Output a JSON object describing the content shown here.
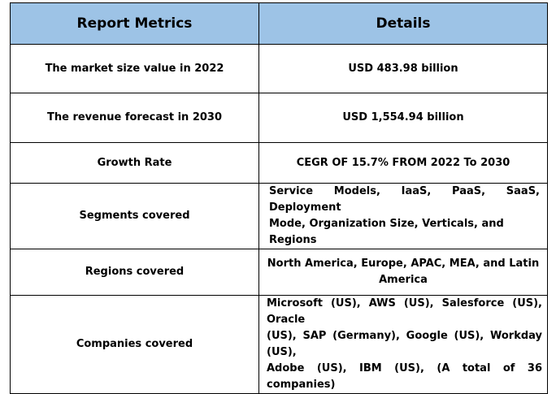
{
  "table": {
    "header": {
      "metrics_label": "Report Metrics",
      "details_label": "Details"
    },
    "rows": [
      {
        "metric": "The market size value in 2022",
        "detail": "USD 483.98 billion"
      },
      {
        "metric": "The revenue forecast in 2030",
        "detail": "USD 1,554.94 billion"
      },
      {
        "metric": "Growth Rate",
        "detail": "CEGR OF 15.7% FROM 2022 To 2030"
      },
      {
        "metric": "Segments covered",
        "detail_line1": "Service Models, IaaS, PaaS, SaaS, Deployment",
        "detail_line2": "Mode, Organization Size, Verticals, and Regions"
      },
      {
        "metric": "Regions covered",
        "detail_line1": "North America, Europe, APAC, MEA, and Latin",
        "detail_line2": "America"
      },
      {
        "metric": "Companies covered",
        "detail_line1": "Microsoft (US), AWS (US), Salesforce (US), Oracle",
        "detail_line2": "(US), SAP (Germany), Google (US), Workday (US),",
        "detail_line3": "Adobe (US), IBM (US), (A total of 36 companies)"
      }
    ]
  },
  "colors": {
    "header_bg": "#9dc3e6",
    "border": "#000000",
    "text": "#000000"
  }
}
